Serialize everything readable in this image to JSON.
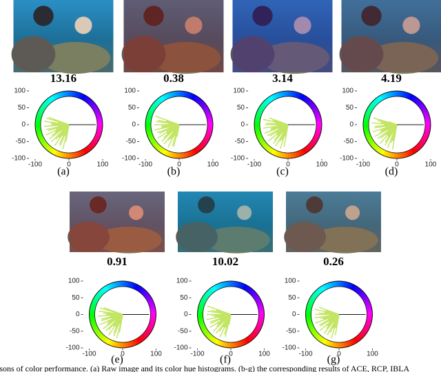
{
  "rows": [
    {
      "panels": [
        {
          "score": "13.16",
          "label": "(a)"
        },
        {
          "score": "0.38",
          "label": "(b)"
        },
        {
          "score": "3.14",
          "label": "(c)"
        },
        {
          "score": "4.19",
          "label": "(d)"
        }
      ],
      "yticks": [
        100,
        50,
        0,
        -50,
        -100
      ],
      "xticks": [
        -100,
        0,
        100
      ]
    },
    {
      "panels": [
        {
          "score": "0.91",
          "label": "(e)"
        },
        {
          "score": "10.02",
          "label": "(f)"
        },
        {
          "score": "0.26",
          "label": "(g)"
        }
      ],
      "yticks": [
        100,
        50,
        0,
        -50,
        -100
      ],
      "xticks": [
        -100,
        0,
        100
      ]
    }
  ],
  "caption": "isons of color performance. (a) Raw image and its color hue histograms. (b-g) the corresponding results of ACE, RCP, IBLA"
}
